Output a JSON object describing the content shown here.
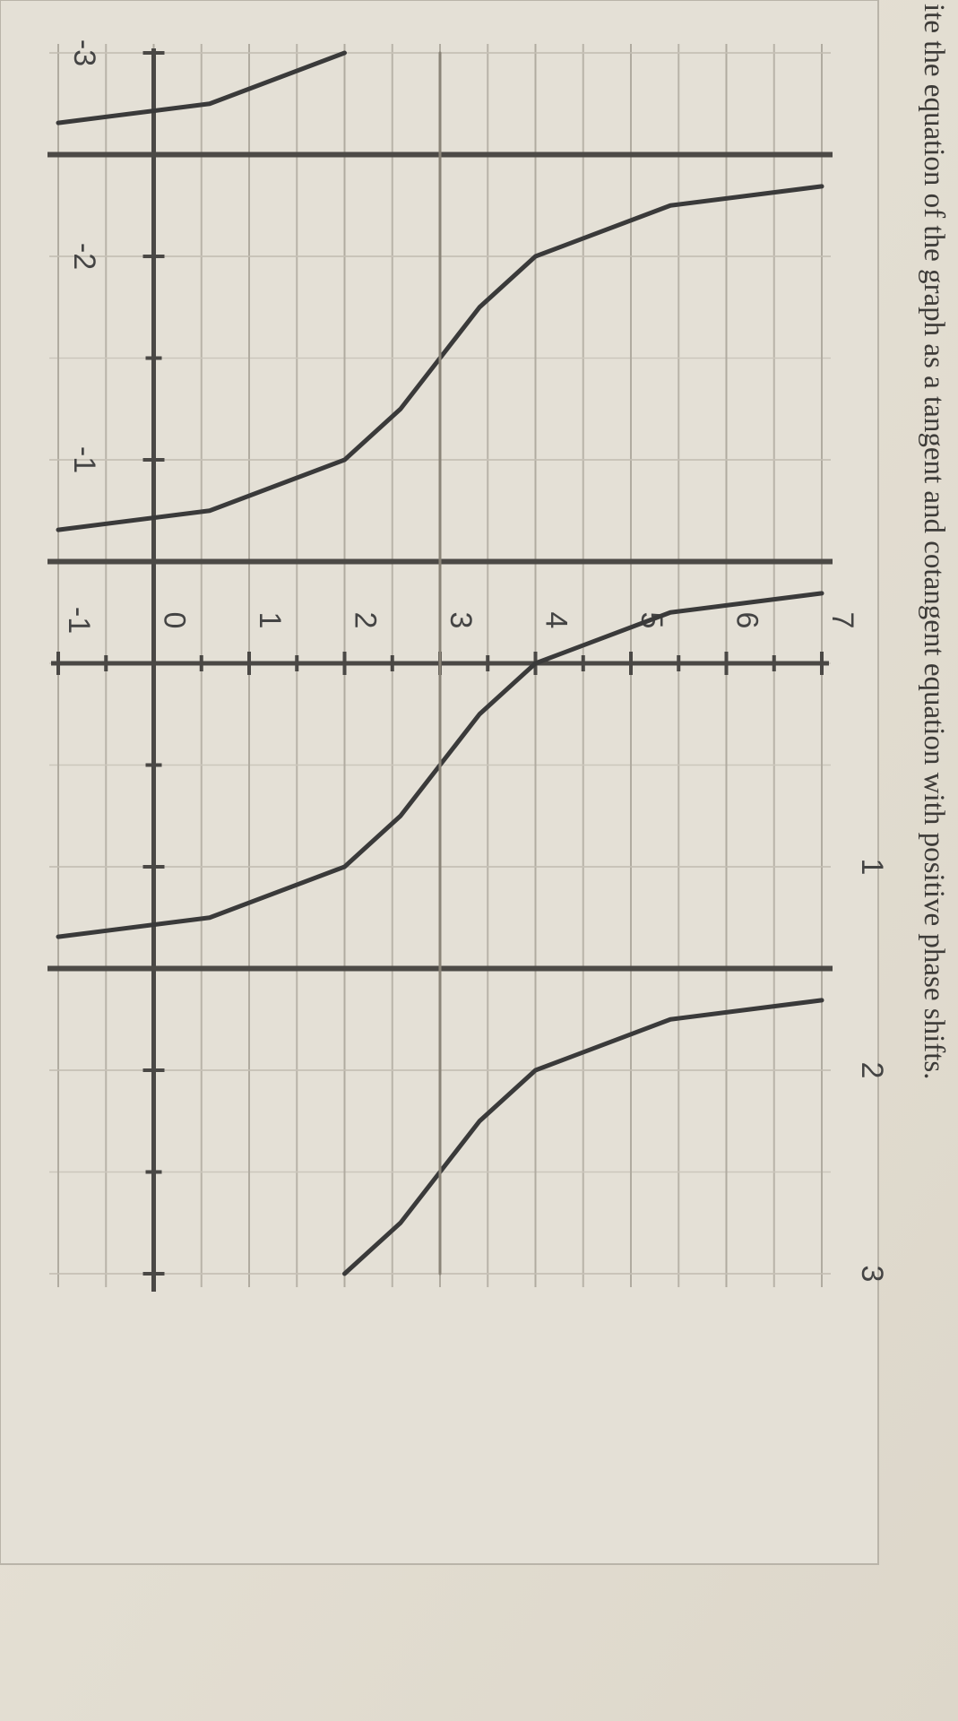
{
  "chart_data": {
    "type": "line",
    "title": "ite the equation of the graph as a tangent and cotangent equation with positive phase shifts.",
    "xlim": [
      -3,
      3
    ],
    "ylim": [
      -1,
      7
    ],
    "xticks": [
      -3,
      -2,
      -1,
      1,
      2,
      3
    ],
    "yticks": [
      -1,
      0,
      1,
      2,
      3,
      4,
      5,
      6,
      7
    ],
    "grid": true,
    "asymptotes": [
      -2.5,
      -0.5,
      1.5
    ],
    "series": [
      {
        "color": "#3a3a3a",
        "x": [
          -3,
          -2.75,
          -2.656,
          -2.5,
          -2.344,
          -2.25,
          -2,
          -1.75,
          -1.5,
          -1.25,
          -1,
          -0.75,
          -0.656,
          -0.5,
          -0.344,
          -0.25,
          0,
          0.25,
          0.5,
          0.75,
          1,
          1.25,
          1.344,
          1.5,
          1.656,
          1.75,
          2,
          2.25,
          2.5,
          2.75,
          3
        ],
        "values": [
          2,
          0.586,
          -1,
          null,
          7,
          5.414,
          4,
          3.414,
          3,
          2.586,
          2,
          0.586,
          -1,
          null,
          7,
          5.414,
          4,
          3.414,
          3,
          2.586,
          2,
          0.586,
          -1,
          null,
          7,
          5.414,
          4,
          3.414,
          3,
          2.586,
          2
        ]
      },
      {
        "color": "#8a8478",
        "x": [
          -3,
          3
        ],
        "values": [
          3,
          3
        ]
      }
    ]
  }
}
